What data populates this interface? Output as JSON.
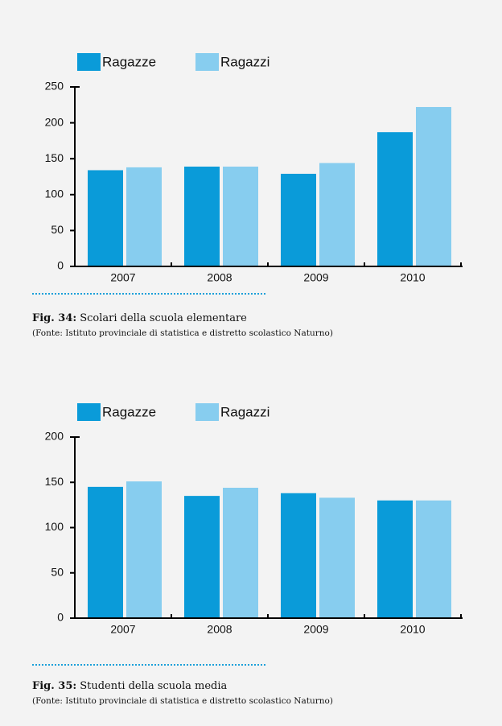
{
  "chart_data": [
    {
      "type": "bar",
      "categories": [
        "2007",
        "2008",
        "2009",
        "2010"
      ],
      "series": [
        {
          "name": "Ragazze",
          "color": "#0a9bd9",
          "values": [
            134,
            139,
            129,
            187
          ]
        },
        {
          "name": "Ragazzi",
          "color": "#87cdef",
          "values": [
            138,
            139,
            144,
            222
          ]
        }
      ],
      "ylim": [
        0,
        250
      ],
      "yticks": [
        0,
        50,
        100,
        150,
        200,
        250
      ],
      "caption_label": "Fig. 34:",
      "caption": "Scolari della scuola elementare",
      "source": "(Fonte: Istituto provinciale di statistica e distretto scolastico Naturno)"
    },
    {
      "type": "bar",
      "categories": [
        "2007",
        "2008",
        "2009",
        "2010"
      ],
      "series": [
        {
          "name": "Ragazze",
          "color": "#0a9bd9",
          "values": [
            145,
            135,
            138,
            130
          ]
        },
        {
          "name": "Ragazzi",
          "color": "#87cdef",
          "values": [
            151,
            144,
            133,
            130
          ]
        }
      ],
      "ylim": [
        0,
        200
      ],
      "yticks": [
        0,
        50,
        100,
        150,
        200
      ],
      "caption_label": "Fig. 35:",
      "caption": "Studenti della scuola media",
      "source": "(Fonte: Istituto provinciale di statistica e distretto scolastico Naturno)"
    }
  ]
}
